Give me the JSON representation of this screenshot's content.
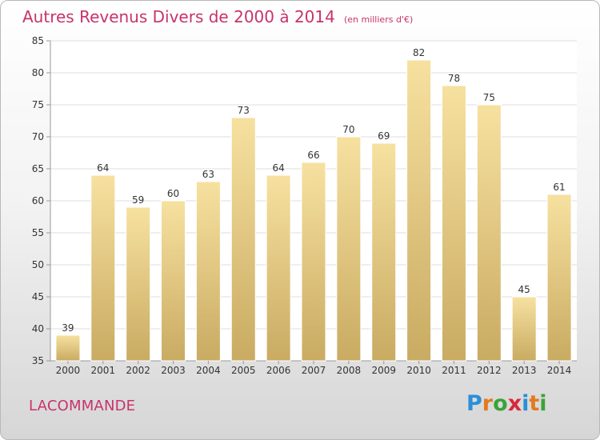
{
  "title": "Autres Revenus Divers de 2000 à 2014",
  "subtitle": "(en milliers d'€)",
  "commune": "LACOMMANDE",
  "logo": {
    "letters": [
      "P",
      "r",
      "o",
      "x",
      "i",
      "t",
      "i"
    ],
    "colors": [
      "#2a8fd8",
      "#e27b1e",
      "#3aa33a",
      "#d8283c",
      "#2a8fd8",
      "#e27b1e",
      "#3aa33a"
    ]
  },
  "colors": {
    "accent": "#c8336b",
    "bar_top": "#f7e1a0",
    "bar_bottom": "#c9ab62",
    "axis_text": "#333333",
    "grid": "#dddddd"
  },
  "chart_data": {
    "type": "bar",
    "categories": [
      "2000",
      "2001",
      "2002",
      "2003",
      "2004",
      "2005",
      "2006",
      "2007",
      "2008",
      "2009",
      "2010",
      "2011",
      "2012",
      "2013",
      "2014"
    ],
    "values": [
      39,
      64,
      59,
      60,
      63,
      73,
      64,
      66,
      70,
      69,
      82,
      78,
      75,
      45,
      61
    ],
    "ylim": [
      35,
      85
    ],
    "yticks": [
      35,
      40,
      45,
      50,
      55,
      60,
      65,
      70,
      75,
      80,
      85
    ],
    "grid": true,
    "data_labels": true
  }
}
